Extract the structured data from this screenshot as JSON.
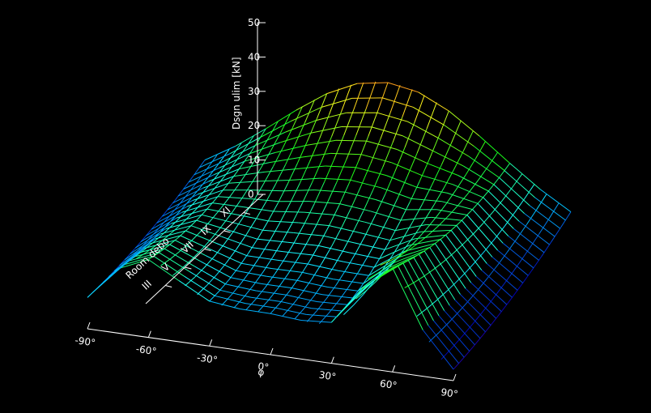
{
  "chart_data": {
    "type": "surface",
    "title": "",
    "xlabel": "φ",
    "ylabel": "Room debo",
    "zlabel": "Dsgn ulim [kN]",
    "x_ticks": [
      "-90°",
      "-60°",
      "-30°",
      "0°",
      "30°",
      "60°",
      "90°"
    ],
    "y_ticks": [
      "III",
      "V",
      "VII",
      "IX",
      "XI"
    ],
    "z_ticks": [
      "0",
      "10",
      "20",
      "30",
      "40",
      "50"
    ],
    "xlim": [
      -90,
      90
    ],
    "zlim": [
      0,
      50
    ],
    "grid": false,
    "colormap": "rainbow",
    "background": "#000000",
    "axis_color": "#ffffff"
  }
}
